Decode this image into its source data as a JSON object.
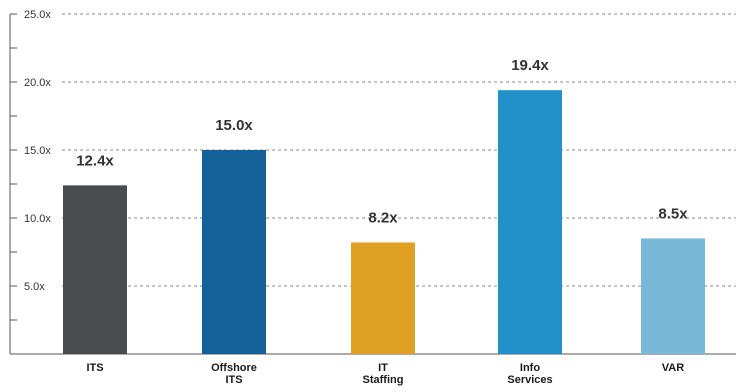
{
  "chart_data": {
    "type": "bar",
    "title": "",
    "xlabel": "",
    "ylabel": "",
    "ylim": [
      0,
      25
    ],
    "grid": true,
    "legend": "none",
    "y_ticks": [
      {
        "value": 5,
        "label": "5.0x"
      },
      {
        "value": 10,
        "label": "10.0x"
      },
      {
        "value": 15,
        "label": "15.0x"
      },
      {
        "value": 20,
        "label": "20.0x"
      },
      {
        "value": 25,
        "label": "25.0x"
      }
    ],
    "categories": [
      [
        "ITS"
      ],
      [
        "Offshore",
        "ITS"
      ],
      [
        "IT",
        "Staffing"
      ],
      [
        "Info",
        "Services"
      ],
      [
        "VAR"
      ]
    ],
    "values": [
      12.4,
      15.0,
      8.2,
      19.4,
      8.5
    ],
    "data_labels": [
      "12.4x",
      "15.0x",
      "8.2x",
      "19.4x",
      "8.5x"
    ],
    "colors": [
      "#4a4b4d",
      "#14619a",
      "#e0a024",
      "#2290c9",
      "#7ab8da"
    ]
  }
}
